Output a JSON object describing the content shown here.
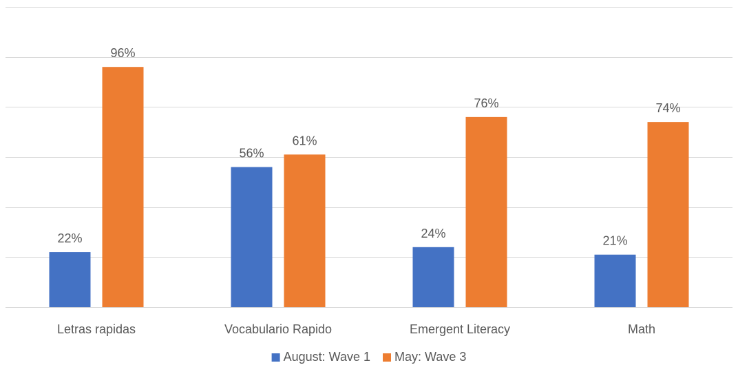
{
  "chart_data": {
    "type": "bar",
    "categories": [
      "Letras rapidas",
      "Vocabulario Rapido",
      "Emergent Literacy",
      "Math"
    ],
    "series": [
      {
        "name": "August: Wave 1",
        "color": "#4472c4",
        "values": [
          22,
          56,
          24,
          21
        ],
        "labels": [
          "22%",
          "56%",
          "24%",
          "21%"
        ]
      },
      {
        "name": "May: Wave 3",
        "color": "#ed7d31",
        "values": [
          96,
          61,
          76,
          74
        ],
        "labels": [
          "96%",
          "61%",
          "76%",
          "74%"
        ]
      }
    ],
    "ylim": [
      0,
      120
    ],
    "grid": true,
    "legend": "bottom-center",
    "title": "",
    "xlabel": "",
    "ylabel": ""
  }
}
